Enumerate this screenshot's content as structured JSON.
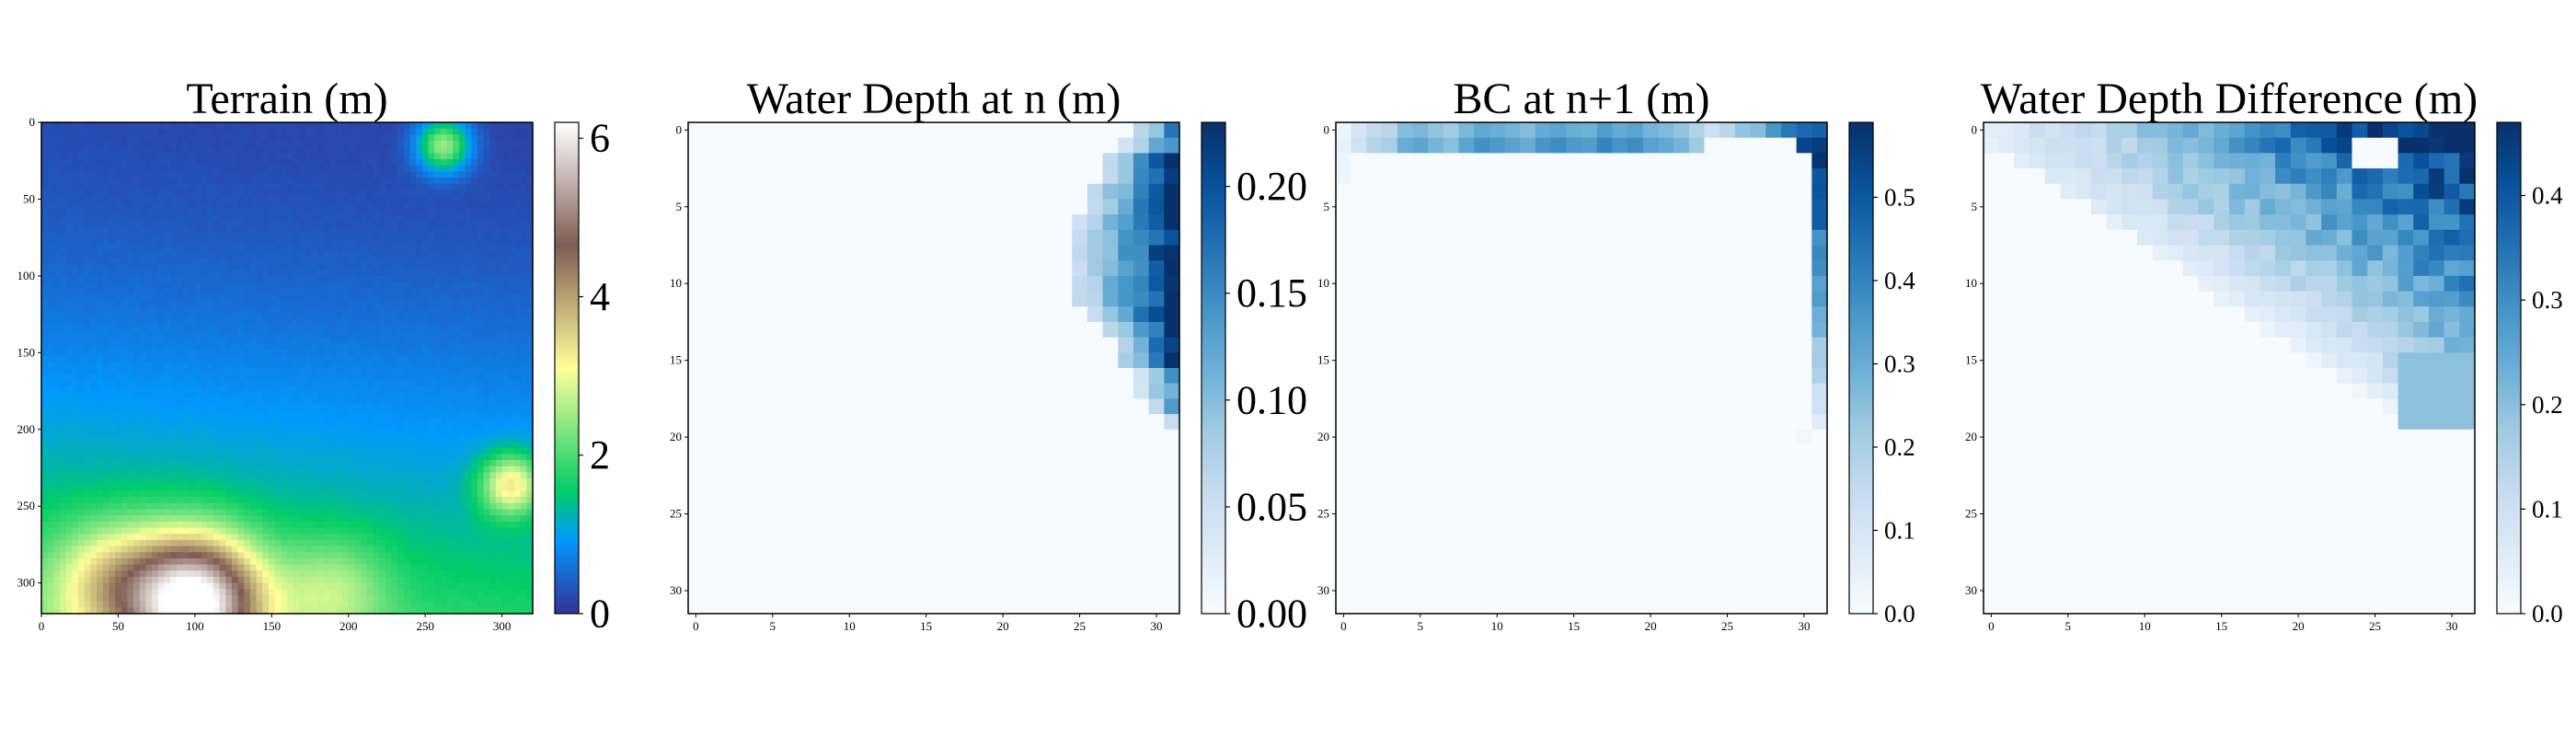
{
  "chart_data": [
    {
      "type": "heatmap",
      "title": "Terrain (m)",
      "colormap": "terrain",
      "xlim": [
        0,
        320
      ],
      "ylim": [
        320,
        0
      ],
      "xticks": [
        "0",
        "50",
        "100",
        "150",
        "200",
        "250",
        "300"
      ],
      "yticks": [
        "0",
        "50",
        "100",
        "150",
        "200",
        "250",
        "300"
      ],
      "colorbar": {
        "range": [
          0,
          6.2
        ],
        "ticks": [
          "0",
          "2",
          "4",
          "6"
        ]
      },
      "features": {
        "base_low_top_right": 0.15,
        "base_high_bottom": 1.7,
        "ridge_bottom": {
          "x": 100,
          "y": 312,
          "peak": 6.2,
          "spread": 30
        },
        "knoll_top_right": {
          "x": 262,
          "y": 15,
          "height": 2.3
        },
        "knoll_right": {
          "x": 306,
          "y": 236,
          "height": 2.2
        }
      }
    },
    {
      "type": "heatmap",
      "title": "Water Depth at n (m)",
      "colormap": "Blues",
      "grid_size": 32,
      "xticks": [
        "0",
        "5",
        "10",
        "15",
        "20",
        "25",
        "30"
      ],
      "yticks": [
        "0",
        "5",
        "10",
        "15",
        "20",
        "25",
        "30"
      ],
      "colorbar": {
        "range": [
          0,
          0.23
        ],
        "ticks": [
          "0.00",
          "0.05",
          "0.10",
          "0.15",
          "0.20"
        ]
      },
      "wet_region": {
        "row_start": 0,
        "row_end": 19,
        "left_column_per_row": [
          29,
          28,
          27,
          27,
          26,
          26,
          25,
          25,
          25,
          25,
          25,
          25,
          26,
          27,
          28,
          28,
          29,
          29,
          30,
          31
        ],
        "max_value": 0.23
      }
    },
    {
      "type": "heatmap",
      "title": "BC at n+1 (m)",
      "colormap": "Blues",
      "grid_size": 32,
      "xticks": [
        "0",
        "5",
        "10",
        "15",
        "20",
        "25",
        "30"
      ],
      "yticks": [
        "0",
        "5",
        "10",
        "15",
        "20",
        "25",
        "30"
      ],
      "colorbar": {
        "range": [
          0,
          0.59
        ],
        "ticks": [
          "0.0",
          "0.1",
          "0.2",
          "0.3",
          "0.4",
          "0.5"
        ]
      },
      "boundary": {
        "top_rows": [
          0,
          1
        ],
        "right_column": 31,
        "right_rows": [
          0,
          19
        ],
        "top_row_values": [
          0.04,
          0.12,
          0.18,
          0.2,
          0.3,
          0.32,
          0.28,
          0.25,
          0.32,
          0.37,
          0.35,
          0.33,
          0.3,
          0.36,
          0.38,
          0.35,
          0.34,
          0.4,
          0.36,
          0.38,
          0.33,
          0.31,
          0.28,
          0.22,
          0.15,
          0.2,
          0.28,
          0.3,
          0.42,
          0.5,
          0.54,
          0.56
        ],
        "max_value": 0.59
      }
    },
    {
      "type": "heatmap",
      "title": "Water Depth Difference (m)",
      "colormap": "Blues",
      "grid_size": 32,
      "xticks": [
        "0",
        "5",
        "10",
        "15",
        "20",
        "25",
        "30"
      ],
      "yticks": [
        "0",
        "5",
        "10",
        "15",
        "20",
        "25",
        "30"
      ],
      "colorbar": {
        "range": [
          0,
          0.47
        ],
        "ticks": [
          "0.0",
          "0.1",
          "0.2",
          "0.3",
          "0.4"
        ]
      },
      "wet_region": {
        "row_start": 0,
        "row_end": 19,
        "max_value": 0.47,
        "dry_patch": {
          "rows": [
            1,
            2
          ],
          "cols": [
            24,
            26
          ]
        }
      }
    }
  ]
}
